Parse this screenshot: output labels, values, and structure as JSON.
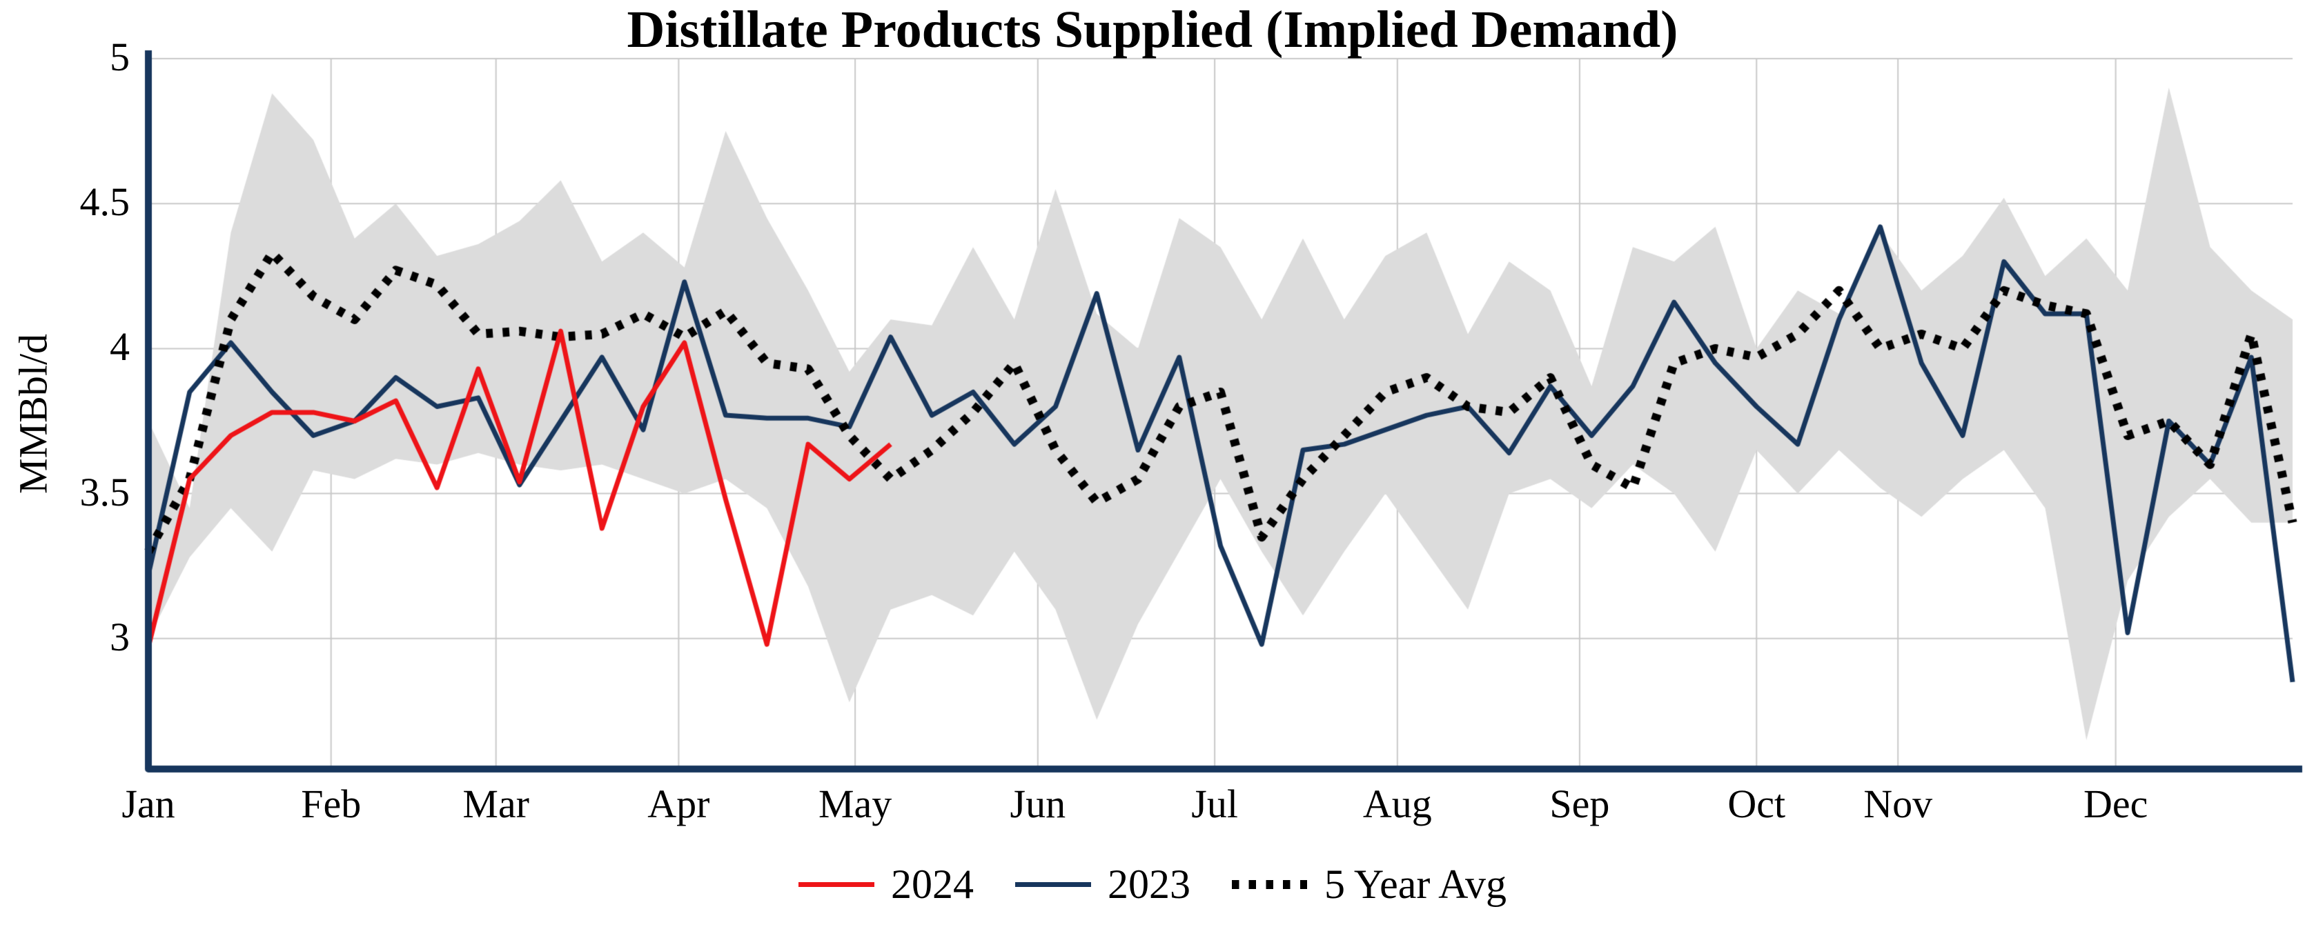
{
  "chart_data": {
    "type": "line",
    "title": "Distillate Products Supplied (Implied Demand)",
    "ylabel": "MMBbl/d",
    "xlabel": "",
    "ylim": [
      2.55,
      5.0
    ],
    "xlim": [
      1,
      53
    ],
    "x_unit": "week_of_year",
    "grid": true,
    "grid_color": "#c9c9c9",
    "axis_color": "#17365d",
    "background_color": "#ffffff",
    "yticks": [
      3,
      3.5,
      4,
      4.5,
      5
    ],
    "ytick_labels": [
      "3",
      "3.5",
      "4",
      "4.5",
      "5"
    ],
    "month_ticks": [
      {
        "label": "Jan",
        "week": 1
      },
      {
        "label": "Feb",
        "week": 5.43
      },
      {
        "label": "Mar",
        "week": 9.43
      },
      {
        "label": "Apr",
        "week": 13.86
      },
      {
        "label": "May",
        "week": 18.14
      },
      {
        "label": "Jun",
        "week": 22.57
      },
      {
        "label": "Jul",
        "week": 26.86
      },
      {
        "label": "Aug",
        "week": 31.29
      },
      {
        "label": "Sep",
        "week": 35.71
      },
      {
        "label": "Oct",
        "week": 40.0
      },
      {
        "label": "Nov",
        "week": 43.43
      },
      {
        "label": "Dec",
        "week": 48.71
      }
    ],
    "band": {
      "color": "#dcdcdc",
      "upper": [
        3.75,
        3.45,
        4.4,
        4.88,
        4.72,
        4.38,
        4.5,
        4.32,
        4.36,
        4.44,
        4.58,
        4.3,
        4.4,
        4.28,
        4.75,
        4.45,
        4.2,
        3.92,
        4.1,
        4.08,
        4.35,
        4.1,
        4.55,
        4.12,
        4.0,
        4.45,
        4.35,
        4.1,
        4.38,
        4.1,
        4.32,
        4.4,
        4.05,
        4.3,
        4.2,
        3.87,
        4.35,
        4.3,
        4.42,
        4.0,
        4.2,
        4.12,
        4.4,
        4.2,
        4.32,
        4.52,
        4.25,
        4.38,
        4.2,
        4.9,
        4.35,
        4.2,
        4.1
      ],
      "lower": [
        3.0,
        3.28,
        3.45,
        3.3,
        3.58,
        3.55,
        3.62,
        3.6,
        3.64,
        3.6,
        3.58,
        3.6,
        3.55,
        3.5,
        3.55,
        3.45,
        3.18,
        2.78,
        3.1,
        3.15,
        3.08,
        3.3,
        3.1,
        2.72,
        3.05,
        3.3,
        3.55,
        3.3,
        3.08,
        3.3,
        3.5,
        3.3,
        3.1,
        3.5,
        3.55,
        3.45,
        3.6,
        3.5,
        3.3,
        3.65,
        3.5,
        3.65,
        3.52,
        3.42,
        3.55,
        3.65,
        3.45,
        2.65,
        3.2,
        3.42,
        3.55,
        3.4,
        3.4
      ]
    },
    "series": [
      {
        "name": "2024",
        "color": "#ee1418",
        "style": "solid",
        "line_width": 7,
        "values": [
          2.97,
          3.55,
          3.7,
          3.78,
          3.78,
          3.75,
          3.82,
          3.52,
          3.93,
          3.54,
          4.06,
          3.38,
          3.8,
          4.02,
          3.48,
          2.98,
          3.67,
          3.55,
          3.67
        ]
      },
      {
        "name": "2023",
        "color": "#17365d",
        "style": "solid",
        "line_width": 7,
        "values": [
          3.22,
          3.85,
          4.02,
          3.85,
          3.7,
          3.75,
          3.9,
          3.8,
          3.83,
          3.53,
          3.75,
          3.97,
          3.72,
          4.23,
          3.77,
          3.76,
          3.76,
          3.73,
          4.04,
          3.77,
          3.85,
          3.67,
          3.8,
          4.19,
          3.65,
          3.97,
          3.32,
          2.98,
          3.65,
          3.67,
          3.72,
          3.77,
          3.8,
          3.64,
          3.87,
          3.7,
          3.87,
          4.16,
          3.95,
          3.8,
          3.67,
          4.1,
          4.42,
          3.95,
          3.7,
          4.3,
          4.12,
          4.12,
          3.02,
          3.75,
          3.6,
          3.97,
          2.85
        ]
      },
      {
        "name": "5 Year Avg",
        "color": "#000000",
        "style": "dotted",
        "line_width": 13,
        "values": [
          3.3,
          3.55,
          4.1,
          4.33,
          4.18,
          4.1,
          4.27,
          4.22,
          4.05,
          4.06,
          4.04,
          4.05,
          4.12,
          4.04,
          4.13,
          3.95,
          3.93,
          3.7,
          3.55,
          3.65,
          3.78,
          3.95,
          3.65,
          3.47,
          3.55,
          3.8,
          3.85,
          3.35,
          3.55,
          3.7,
          3.85,
          3.9,
          3.8,
          3.78,
          3.9,
          3.6,
          3.52,
          3.95,
          4.0,
          3.97,
          4.05,
          4.2,
          4.0,
          4.05,
          4.0,
          4.2,
          4.15,
          4.12,
          3.7,
          3.75,
          3.6,
          4.05,
          3.4
        ]
      }
    ],
    "legend": {
      "position": "bottom-center"
    }
  }
}
